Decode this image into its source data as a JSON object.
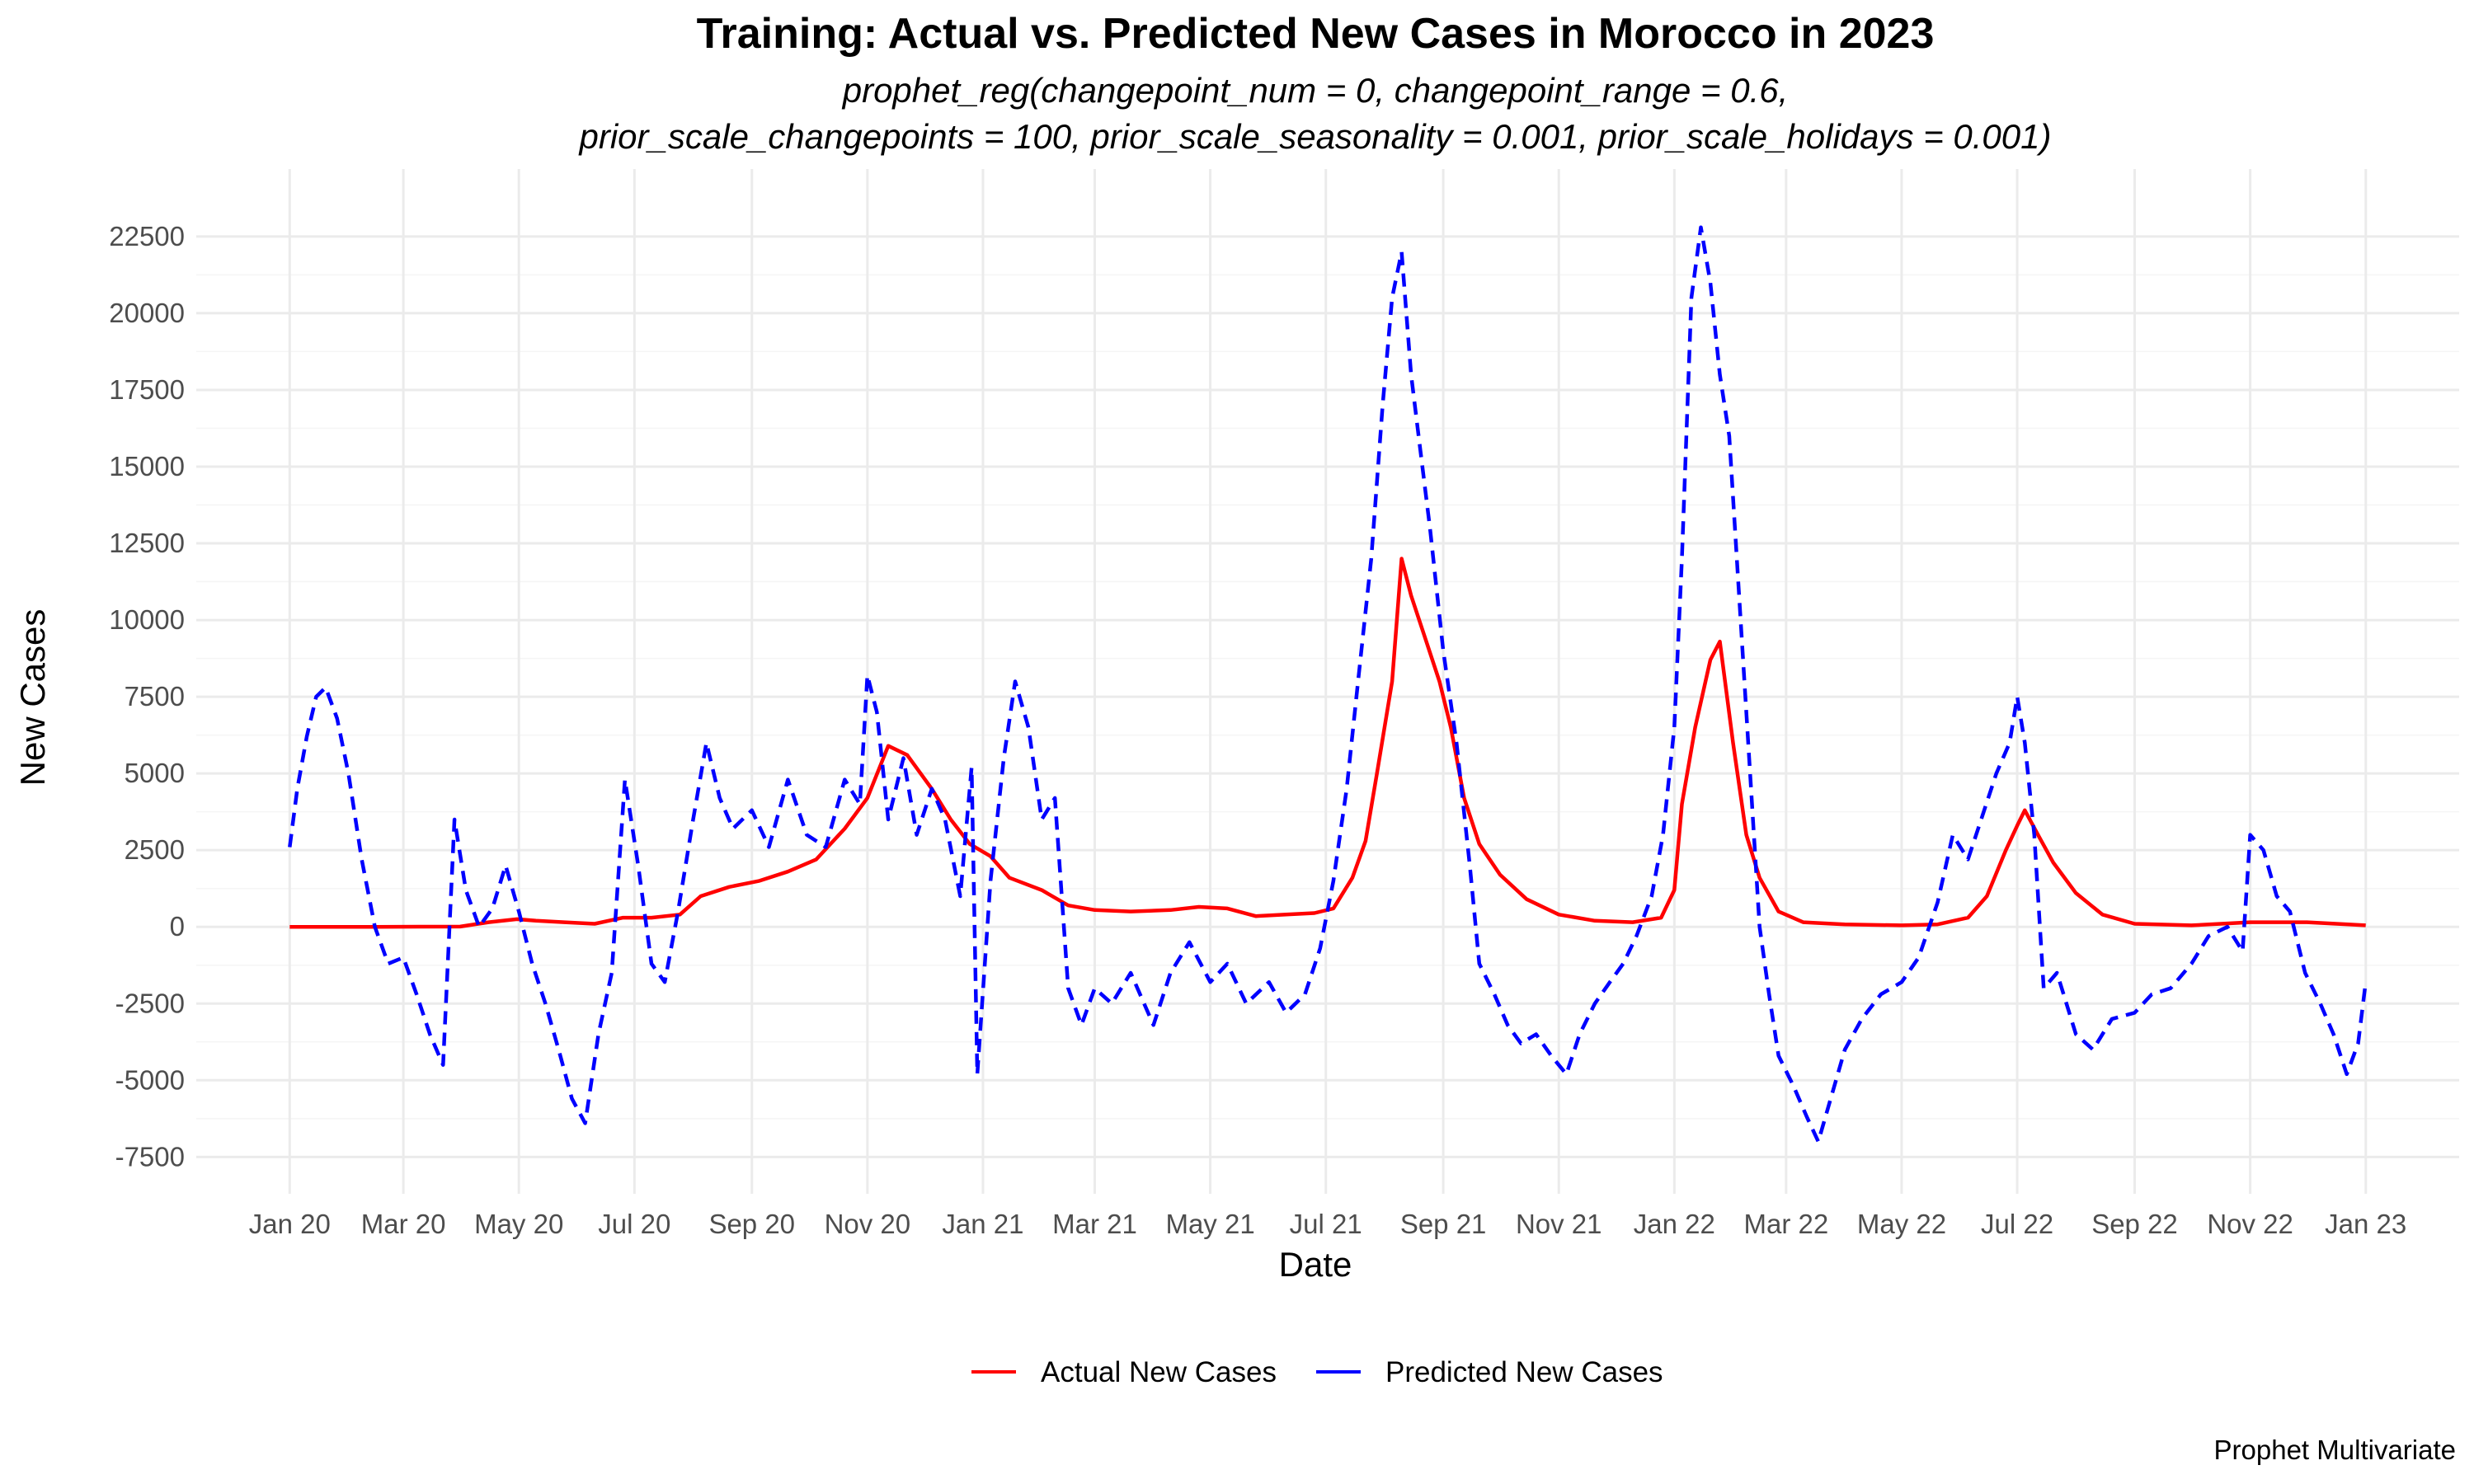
{
  "chart_data": {
    "type": "line",
    "title": "Training: Actual vs. Predicted New Cases in Morocco in 2023",
    "subtitle_lines": [
      "prophet_reg(changepoint_num = 0, changepoint_range = 0.6,",
      "prior_scale_changepoints = 100, prior_scale_seasonality = 0.001, prior_scale_holidays = 0.001)"
    ],
    "xlabel": "Date",
    "ylabel": "New Cases",
    "caption": "Prophet Multivariate",
    "x_range": [
      "2020-01-01",
      "2023-01-01"
    ],
    "ylim": [
      -8700,
      24700
    ],
    "y_ticks": [
      -7500,
      -5000,
      -2500,
      0,
      2500,
      5000,
      7500,
      10000,
      12500,
      15000,
      17500,
      20000,
      22500
    ],
    "x_ticks": [
      {
        "date": "2020-01-01",
        "label": "Jan 20"
      },
      {
        "date": "2020-03-01",
        "label": "Mar 20"
      },
      {
        "date": "2020-05-01",
        "label": "May 20"
      },
      {
        "date": "2020-07-01",
        "label": "Jul 20"
      },
      {
        "date": "2020-09-01",
        "label": "Sep 20"
      },
      {
        "date": "2020-11-01",
        "label": "Nov 20"
      },
      {
        "date": "2021-01-01",
        "label": "Jan 21"
      },
      {
        "date": "2021-03-01",
        "label": "Mar 21"
      },
      {
        "date": "2021-05-01",
        "label": "May 21"
      },
      {
        "date": "2021-07-01",
        "label": "Jul 21"
      },
      {
        "date": "2021-09-01",
        "label": "Sep 21"
      },
      {
        "date": "2021-11-01",
        "label": "Nov 21"
      },
      {
        "date": "2022-01-01",
        "label": "Jan 22"
      },
      {
        "date": "2022-03-01",
        "label": "Mar 22"
      },
      {
        "date": "2022-05-01",
        "label": "May 22"
      },
      {
        "date": "2022-07-01",
        "label": "Jul 22"
      },
      {
        "date": "2022-09-01",
        "label": "Sep 22"
      },
      {
        "date": "2022-11-01",
        "label": "Nov 22"
      },
      {
        "date": "2023-01-01",
        "label": "Jan 23"
      }
    ],
    "grid": true,
    "legend_position": "bottom",
    "series": [
      {
        "name": "Actual New Cases",
        "color": "#ff0000",
        "dash": "solid",
        "points": [
          [
            "2020-01-01",
            0
          ],
          [
            "2020-02-15",
            0
          ],
          [
            "2020-03-31",
            10
          ],
          [
            "2020-04-15",
            150
          ],
          [
            "2020-04-30",
            250
          ],
          [
            "2020-05-10",
            200
          ],
          [
            "2020-05-25",
            150
          ],
          [
            "2020-06-10",
            100
          ],
          [
            "2020-06-25",
            300
          ],
          [
            "2020-07-10",
            300
          ],
          [
            "2020-07-25",
            400
          ],
          [
            "2020-08-05",
            1000
          ],
          [
            "2020-08-20",
            1300
          ],
          [
            "2020-09-05",
            1500
          ],
          [
            "2020-09-20",
            1800
          ],
          [
            "2020-10-05",
            2200
          ],
          [
            "2020-10-20",
            3200
          ],
          [
            "2020-11-01",
            4200
          ],
          [
            "2020-11-12",
            5900
          ],
          [
            "2020-11-22",
            5600
          ],
          [
            "2020-12-05",
            4500
          ],
          [
            "2020-12-15",
            3500
          ],
          [
            "2020-12-25",
            2700
          ],
          [
            "2021-01-05",
            2300
          ],
          [
            "2021-01-15",
            1600
          ],
          [
            "2021-02-01",
            1200
          ],
          [
            "2021-02-15",
            700
          ],
          [
            "2021-03-01",
            550
          ],
          [
            "2021-03-20",
            500
          ],
          [
            "2021-04-10",
            550
          ],
          [
            "2021-04-25",
            650
          ],
          [
            "2021-05-10",
            600
          ],
          [
            "2021-05-25",
            350
          ],
          [
            "2021-06-10",
            400
          ],
          [
            "2021-06-25",
            450
          ],
          [
            "2021-07-05",
            600
          ],
          [
            "2021-07-15",
            1600
          ],
          [
            "2021-07-22",
            2800
          ],
          [
            "2021-07-28",
            5000
          ],
          [
            "2021-08-05",
            8000
          ],
          [
            "2021-08-10",
            12000
          ],
          [
            "2021-08-15",
            10800
          ],
          [
            "2021-08-22",
            9500
          ],
          [
            "2021-08-30",
            8000
          ],
          [
            "2021-09-05",
            6500
          ],
          [
            "2021-09-12",
            4200
          ],
          [
            "2021-09-20",
            2700
          ],
          [
            "2021-10-01",
            1700
          ],
          [
            "2021-10-15",
            900
          ],
          [
            "2021-11-01",
            400
          ],
          [
            "2021-11-20",
            200
          ],
          [
            "2021-12-10",
            150
          ],
          [
            "2021-12-25",
            300
          ],
          [
            "2022-01-01",
            1200
          ],
          [
            "2022-01-05",
            4000
          ],
          [
            "2022-01-12",
            6500
          ],
          [
            "2022-01-20",
            8700
          ],
          [
            "2022-01-25",
            9300
          ],
          [
            "2022-02-01",
            6000
          ],
          [
            "2022-02-08",
            3000
          ],
          [
            "2022-02-15",
            1600
          ],
          [
            "2022-02-25",
            500
          ],
          [
            "2022-03-10",
            150
          ],
          [
            "2022-04-01",
            80
          ],
          [
            "2022-05-01",
            50
          ],
          [
            "2022-05-20",
            80
          ],
          [
            "2022-06-05",
            300
          ],
          [
            "2022-06-15",
            1000
          ],
          [
            "2022-06-25",
            2500
          ],
          [
            "2022-07-01",
            3300
          ],
          [
            "2022-07-05",
            3800
          ],
          [
            "2022-07-12",
            3000
          ],
          [
            "2022-07-20",
            2100
          ],
          [
            "2022-08-01",
            1100
          ],
          [
            "2022-08-15",
            400
          ],
          [
            "2022-09-01",
            100
          ],
          [
            "2022-10-01",
            50
          ],
          [
            "2022-11-01",
            150
          ],
          [
            "2022-12-01",
            150
          ],
          [
            "2023-01-01",
            50
          ]
        ]
      },
      {
        "name": "Predicted New Cases",
        "color": "#0000ff",
        "dash": "dashed",
        "points": [
          [
            "2020-01-01",
            2600
          ],
          [
            "2020-01-05",
            4500
          ],
          [
            "2020-01-10",
            6200
          ],
          [
            "2020-01-15",
            7500
          ],
          [
            "2020-01-20",
            7800
          ],
          [
            "2020-01-26",
            6800
          ],
          [
            "2020-02-01",
            5000
          ],
          [
            "2020-02-08",
            2200
          ],
          [
            "2020-02-15",
            0
          ],
          [
            "2020-02-22",
            -1200
          ],
          [
            "2020-03-01",
            -1000
          ],
          [
            "2020-03-08",
            -2200
          ],
          [
            "2020-03-15",
            -3500
          ],
          [
            "2020-03-22",
            -4500
          ],
          [
            "2020-03-28",
            3500
          ],
          [
            "2020-04-03",
            1200
          ],
          [
            "2020-04-10",
            0
          ],
          [
            "2020-04-17",
            600
          ],
          [
            "2020-04-24",
            2000
          ],
          [
            "2020-05-01",
            500
          ],
          [
            "2020-05-08",
            -1200
          ],
          [
            "2020-05-15",
            -2500
          ],
          [
            "2020-05-22",
            -4000
          ],
          [
            "2020-05-29",
            -5600
          ],
          [
            "2020-06-05",
            -6400
          ],
          [
            "2020-06-12",
            -3500
          ],
          [
            "2020-06-19",
            -1500
          ],
          [
            "2020-06-26",
            4800
          ],
          [
            "2020-07-03",
            2000
          ],
          [
            "2020-07-10",
            -1200
          ],
          [
            "2020-07-17",
            -1800
          ],
          [
            "2020-07-24",
            500
          ],
          [
            "2020-08-01",
            3500
          ],
          [
            "2020-08-08",
            6000
          ],
          [
            "2020-08-15",
            4200
          ],
          [
            "2020-08-22",
            3200
          ],
          [
            "2020-09-01",
            3800
          ],
          [
            "2020-09-10",
            2600
          ],
          [
            "2020-09-20",
            4800
          ],
          [
            "2020-09-30",
            3000
          ],
          [
            "2020-10-10",
            2600
          ],
          [
            "2020-10-20",
            4800
          ],
          [
            "2020-10-28",
            4000
          ],
          [
            "2020-11-01",
            8200
          ],
          [
            "2020-11-06",
            7000
          ],
          [
            "2020-11-12",
            3500
          ],
          [
            "2020-11-20",
            5500
          ],
          [
            "2020-11-27",
            3000
          ],
          [
            "2020-12-05",
            4500
          ],
          [
            "2020-12-12",
            3500
          ],
          [
            "2020-12-20",
            1000
          ],
          [
            "2020-12-26",
            5200
          ],
          [
            "2020-12-29",
            -4800
          ],
          [
            "2021-01-05",
            1500
          ],
          [
            "2021-01-12",
            5500
          ],
          [
            "2021-01-18",
            8000
          ],
          [
            "2021-01-25",
            6500
          ],
          [
            "2021-02-01",
            3500
          ],
          [
            "2021-02-08",
            4200
          ],
          [
            "2021-02-15",
            -2000
          ],
          [
            "2021-02-22",
            -3200
          ],
          [
            "2021-03-01",
            -2000
          ],
          [
            "2021-03-10",
            -2500
          ],
          [
            "2021-03-20",
            -1500
          ],
          [
            "2021-04-01",
            -3200
          ],
          [
            "2021-04-10",
            -1500
          ],
          [
            "2021-04-20",
            -500
          ],
          [
            "2021-05-01",
            -1800
          ],
          [
            "2021-05-10",
            -1200
          ],
          [
            "2021-05-20",
            -2500
          ],
          [
            "2021-06-01",
            -1800
          ],
          [
            "2021-06-10",
            -2800
          ],
          [
            "2021-06-20",
            -2200
          ],
          [
            "2021-06-28",
            -700
          ],
          [
            "2021-07-05",
            1500
          ],
          [
            "2021-07-12",
            4500
          ],
          [
            "2021-07-18",
            8000
          ],
          [
            "2021-07-25",
            12000
          ],
          [
            "2021-07-31",
            17000
          ],
          [
            "2021-08-05",
            20500
          ],
          [
            "2021-08-10",
            22000
          ],
          [
            "2021-08-15",
            18000
          ],
          [
            "2021-08-20",
            15500
          ],
          [
            "2021-08-25",
            13000
          ],
          [
            "2021-09-01",
            9000
          ],
          [
            "2021-09-08",
            6000
          ],
          [
            "2021-09-15",
            2000
          ],
          [
            "2021-09-20",
            -1200
          ],
          [
            "2021-09-28",
            -2200
          ],
          [
            "2021-10-05",
            -3200
          ],
          [
            "2021-10-12",
            -3800
          ],
          [
            "2021-10-20",
            -3500
          ],
          [
            "2021-10-28",
            -4200
          ],
          [
            "2021-11-05",
            -4800
          ],
          [
            "2021-11-12",
            -3500
          ],
          [
            "2021-11-20",
            -2500
          ],
          [
            "2021-11-28",
            -1800
          ],
          [
            "2021-12-05",
            -1200
          ],
          [
            "2021-12-12",
            -300
          ],
          [
            "2021-12-20",
            1000
          ],
          [
            "2021-12-26",
            3000
          ],
          [
            "2022-01-01",
            6500
          ],
          [
            "2022-01-05",
            12000
          ],
          [
            "2022-01-10",
            20500
          ],
          [
            "2022-01-15",
            22800
          ],
          [
            "2022-01-20",
            21000
          ],
          [
            "2022-01-25",
            18000
          ],
          [
            "2022-01-30",
            16000
          ],
          [
            "2022-02-05",
            10000
          ],
          [
            "2022-02-10",
            5000
          ],
          [
            "2022-02-15",
            0
          ],
          [
            "2022-02-20",
            -2200
          ],
          [
            "2022-02-25",
            -4200
          ],
          [
            "2022-03-05",
            -5200
          ],
          [
            "2022-03-12",
            -6200
          ],
          [
            "2022-03-18",
            -7000
          ],
          [
            "2022-03-25",
            -5500
          ],
          [
            "2022-04-01",
            -4000
          ],
          [
            "2022-04-10",
            -3000
          ],
          [
            "2022-04-20",
            -2200
          ],
          [
            "2022-05-01",
            -1800
          ],
          [
            "2022-05-10",
            -1000
          ],
          [
            "2022-05-20",
            800
          ],
          [
            "2022-05-28",
            3000
          ],
          [
            "2022-06-05",
            2200
          ],
          [
            "2022-06-12",
            3500
          ],
          [
            "2022-06-20",
            5000
          ],
          [
            "2022-06-27",
            6000
          ],
          [
            "2022-07-01",
            7500
          ],
          [
            "2022-07-05",
            6000
          ],
          [
            "2022-07-10",
            3000
          ],
          [
            "2022-07-15",
            -2000
          ],
          [
            "2022-07-22",
            -1500
          ],
          [
            "2022-08-01",
            -3500
          ],
          [
            "2022-08-10",
            -4000
          ],
          [
            "2022-08-20",
            -3000
          ],
          [
            "2022-09-01",
            -2800
          ],
          [
            "2022-09-10",
            -2200
          ],
          [
            "2022-09-20",
            -2000
          ],
          [
            "2022-10-01",
            -1200
          ],
          [
            "2022-10-10",
            -300
          ],
          [
            "2022-10-20",
            0
          ],
          [
            "2022-10-28",
            -800
          ],
          [
            "2022-11-01",
            3000
          ],
          [
            "2022-11-08",
            2500
          ],
          [
            "2022-11-15",
            1000
          ],
          [
            "2022-11-22",
            500
          ],
          [
            "2022-11-30",
            -1500
          ],
          [
            "2022-12-08",
            -2500
          ],
          [
            "2022-12-15",
            -3500
          ],
          [
            "2022-12-22",
            -4800
          ],
          [
            "2022-12-28",
            -3800
          ],
          [
            "2023-01-01",
            -1800
          ]
        ]
      }
    ]
  }
}
